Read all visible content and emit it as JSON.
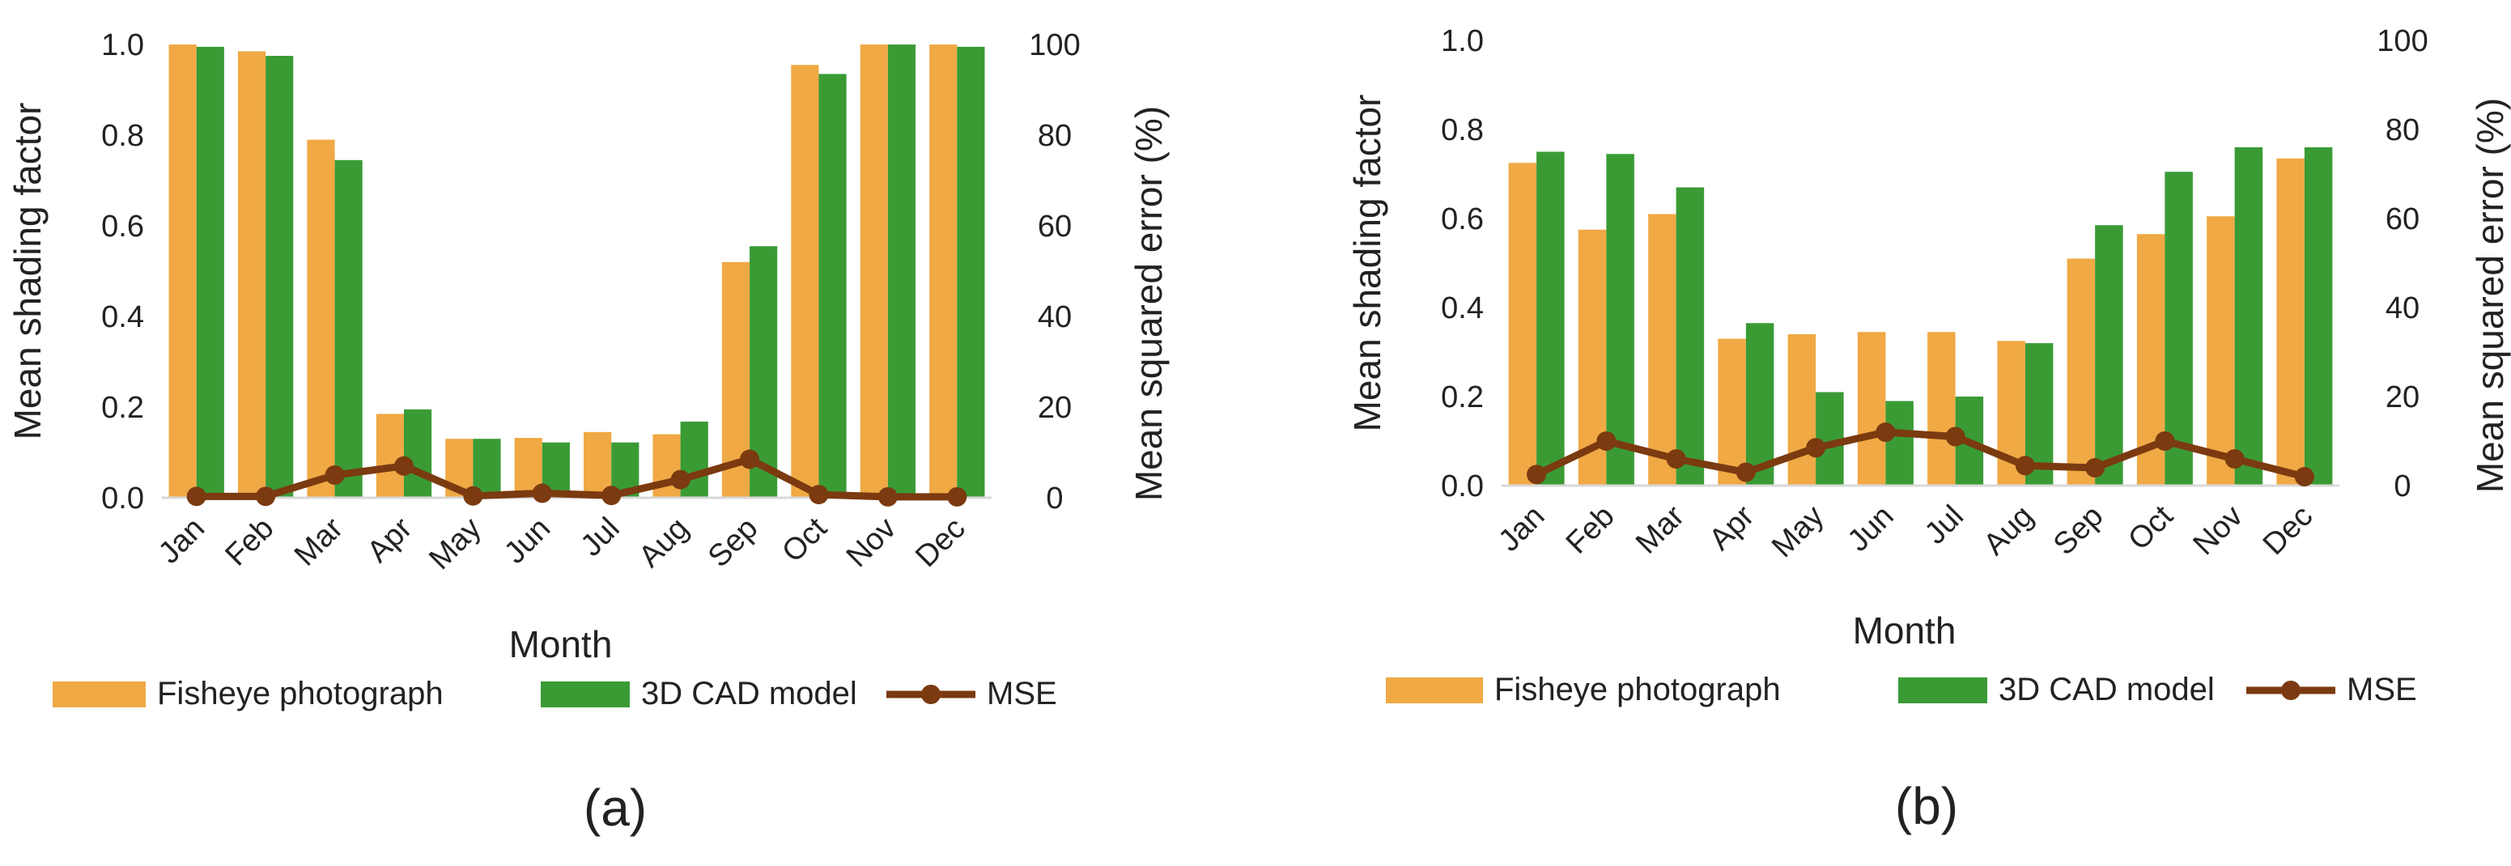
{
  "colors": {
    "fisheye": "#F0A944",
    "cad": "#3A9B35",
    "mse": "#7B3A10",
    "axis": "#D9D9D9",
    "text": "#222222"
  },
  "legend": [
    "Fisheye photograph",
    "3D CAD model",
    "MSE"
  ],
  "chart_data": [
    {
      "type": "bar",
      "caption": "(a)",
      "categories": [
        "Jan",
        "Feb",
        "Mar",
        "Apr",
        "May",
        "Jun",
        "Jul",
        "Aug",
        "Sep",
        "Oct",
        "Nov",
        "Dec"
      ],
      "xlabel": "Month",
      "ylabel": "Mean shading factor",
      "y2label": "Mean squared error (%)",
      "ylim": [
        0,
        1.0
      ],
      "yticks": [
        "0.0",
        "0.2",
        "0.4",
        "0.6",
        "0.8",
        "1.0"
      ],
      "y2lim": [
        0,
        100
      ],
      "y2ticks": [
        "0",
        "20",
        "40",
        "60",
        "80",
        "100"
      ],
      "series": [
        {
          "name": "Fisheye photograph",
          "type": "bar",
          "values": [
            1.0,
            0.985,
            0.79,
            0.185,
            0.13,
            0.132,
            0.145,
            0.14,
            0.52,
            0.955,
            1.0,
            1.0
          ]
        },
        {
          "name": "3D CAD model",
          "type": "bar",
          "values": [
            0.995,
            0.975,
            0.745,
            0.195,
            0.13,
            0.122,
            0.122,
            0.168,
            0.555,
            0.935,
            1.0,
            0.995
          ]
        },
        {
          "name": "MSE",
          "type": "line",
          "axis": "secondary",
          "values": [
            0.3,
            0.3,
            5,
            7,
            0.4,
            1,
            0.5,
            4,
            8.5,
            0.7,
            0.2,
            0.2
          ]
        }
      ]
    },
    {
      "type": "bar",
      "caption": "(b)",
      "categories": [
        "Jan",
        "Feb",
        "Mar",
        "Apr",
        "May",
        "Jun",
        "Jul",
        "Aug",
        "Sep",
        "Oct",
        "Nov",
        "Dec"
      ],
      "xlabel": "Month",
      "ylabel": "Mean shading factor",
      "y2label": "Mean squared error (%)",
      "ylim": [
        0,
        1.0
      ],
      "yticks": [
        "0.0",
        "0.2",
        "0.4",
        "0.6",
        "0.8",
        "1.0"
      ],
      "y2lim": [
        0,
        100
      ],
      "y2ticks": [
        "0",
        "20",
        "40",
        "60",
        "80",
        "100"
      ],
      "series": [
        {
          "name": "Fisheye photograph",
          "type": "bar",
          "values": [
            0.725,
            0.575,
            0.61,
            0.33,
            0.34,
            0.345,
            0.345,
            0.325,
            0.51,
            0.565,
            0.605,
            0.735
          ]
        },
        {
          "name": "3D CAD model",
          "type": "bar",
          "values": [
            0.75,
            0.745,
            0.67,
            0.365,
            0.21,
            0.19,
            0.2,
            0.32,
            0.585,
            0.705,
            0.76,
            0.76
          ]
        },
        {
          "name": "MSE",
          "type": "line",
          "axis": "secondary",
          "values": [
            2.5,
            10,
            6,
            3,
            8.5,
            12,
            11,
            4.5,
            4,
            10,
            6,
            2
          ]
        }
      ]
    }
  ]
}
